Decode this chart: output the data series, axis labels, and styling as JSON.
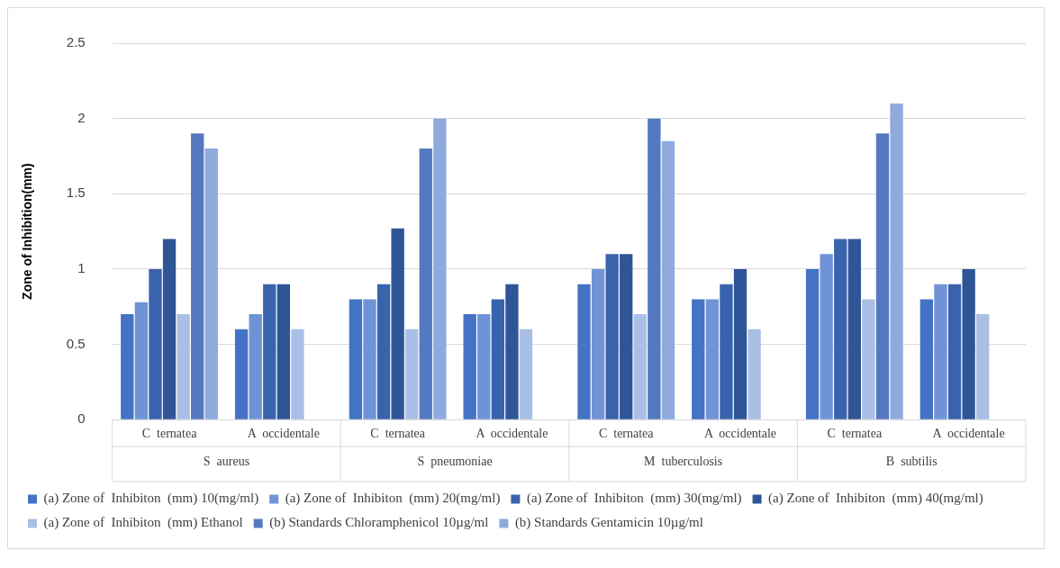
{
  "chart_data": {
    "type": "bar",
    "ylabel": "Zone of Inhibition(mm)",
    "categories": [
      "C  ternatea",
      "A  occidentale",
      "C  ternatea",
      "A  occidentale",
      "C  ternatea",
      "A  occidentale",
      "C  ternatea",
      "A  occidentale"
    ],
    "annotations": [
      "S  aureus",
      "S  pneumoniae",
      "M  tuberculosis",
      "B  subtilis"
    ],
    "ylim": [
      0,
      2.5
    ],
    "yticks": [
      0,
      0.5,
      1,
      1.5,
      2,
      2.5
    ],
    "grid": "y",
    "legend": "bottom",
    "series": [
      {
        "name": "(a) Zone of  Inhibiton  (mm) 10(mg/ml)",
        "color": "#4472c4",
        "values": [
          0.7,
          0.6,
          0.8,
          0.7,
          0.9,
          0.8,
          1.0,
          0.8
        ]
      },
      {
        "name": "(a) Zone of  Inhibiton  (mm) 20(mg/ml)",
        "color": "#6f93d6",
        "values": [
          0.78,
          0.7,
          0.8,
          0.7,
          1.0,
          0.8,
          1.1,
          0.9
        ]
      },
      {
        "name": "(a) Zone of  Inhibiton  (mm) 30(mg/ml)",
        "color": "#3a63ad",
        "values": [
          1.0,
          0.9,
          0.9,
          0.8,
          1.1,
          0.9,
          1.2,
          0.9
        ]
      },
      {
        "name": "(a) Zone of  Inhibiton  (mm) 40(mg/ml)",
        "color": "#2f5597",
        "values": [
          1.2,
          0.9,
          1.27,
          0.9,
          1.1,
          1.0,
          1.2,
          1.0
        ]
      },
      {
        "name": "(a) Zone of  Inhibiton  (mm) Ethanol",
        "color": "#a9bfe6",
        "values": [
          0.7,
          0.6,
          0.6,
          0.6,
          0.7,
          0.6,
          0.8,
          0.7
        ]
      },
      {
        "name": "(b) Standards Chloramphenicol 10µg/ml",
        "color": "#5479c0",
        "values": [
          1.9,
          null,
          1.8,
          null,
          2.0,
          null,
          1.9,
          null
        ]
      },
      {
        "name": "(b) Standards Gentamicin 10µg/ml",
        "color": "#8faadc",
        "values": [
          1.8,
          null,
          2.0,
          null,
          1.85,
          null,
          2.1,
          null
        ]
      }
    ]
  }
}
